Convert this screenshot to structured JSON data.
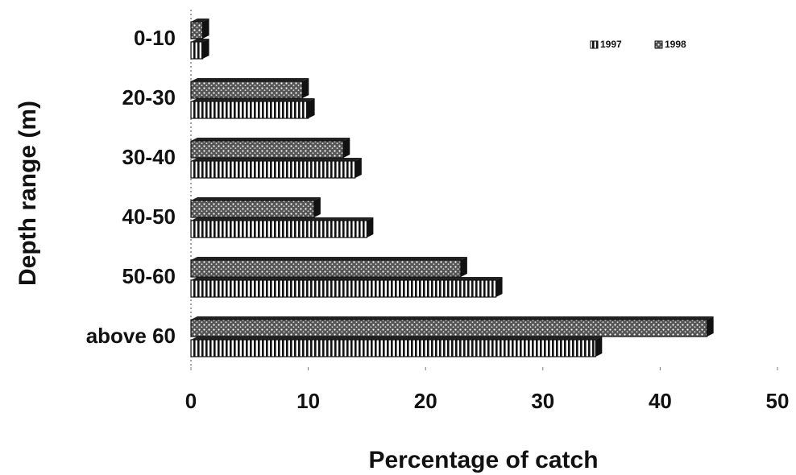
{
  "chart_data": {
    "type": "hbar",
    "categories": [
      "0-10",
      "20-30",
      "30-40",
      "40-50",
      "50-60",
      "above 60"
    ],
    "series": [
      {
        "name": "1997",
        "color": "#111111",
        "values": [
          1,
          10,
          14,
          15,
          26,
          34.5
        ]
      },
      {
        "name": "1998",
        "color": "#111111",
        "values": [
          1,
          9.5,
          13,
          10.5,
          23,
          44
        ]
      }
    ],
    "xlim": [
      0,
      50
    ],
    "xticks": [
      0,
      10,
      20,
      30,
      40,
      50
    ],
    "xlabel": "Percentage of catch",
    "ylabel": "Depth range (m)",
    "legend": "top-right"
  }
}
